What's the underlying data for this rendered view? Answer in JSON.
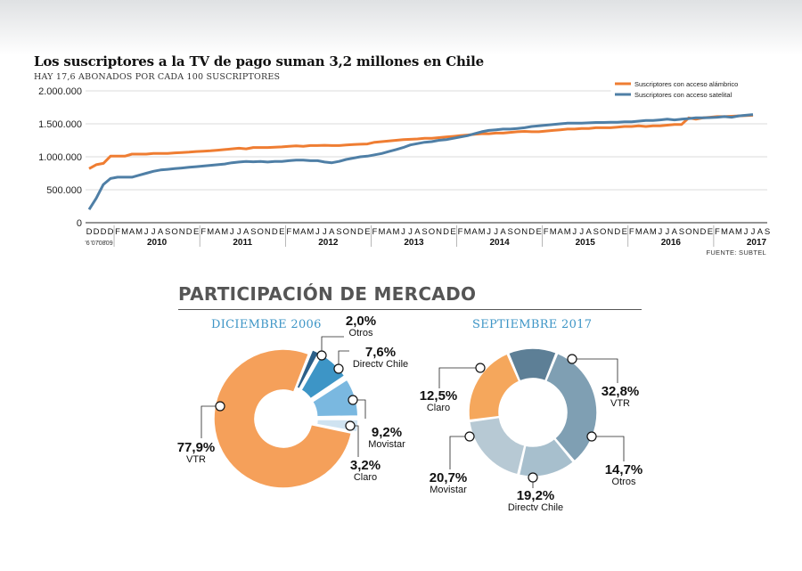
{
  "header": {
    "title": "Los suscriptores a la TV de pago suman 3,2 millones en Chile",
    "subtitle": "HAY 17,6 ABONADOS POR CADA 100 SUSCRIPTORES",
    "source": "FUENTE: SUBTEL"
  },
  "colors": {
    "alambrico": "#ef7d32",
    "satelital": "#4f7fa6",
    "vtr_2006": "#f5a05a",
    "movistar_2006": "#7ab8e0",
    "directv_2006": "#3d95c6",
    "otros_2006": "#2b5f88",
    "claro_2006": "#cfe3f1",
    "vtr_2017": "#7f9fb3",
    "otros_2017": "#a7bfcd",
    "directv_2017": "#b7c9d4",
    "movistar_2017": "#f5a75c",
    "claro_2017": "#5d7f96"
  },
  "chart_data": [
    {
      "type": "line",
      "title": "Los suscriptores a la TV de pago suman 3,2 millones en Chile",
      "ylim": [
        0,
        2000000
      ],
      "yticks": [
        {
          "v": 0,
          "label": "0"
        },
        {
          "v": 500000,
          "label": "500.000"
        },
        {
          "v": 1000000,
          "label": "1.000.000"
        },
        {
          "v": 1500000,
          "label": "1.500.000"
        },
        {
          "v": 2000000,
          "label": "2.000.000"
        }
      ],
      "legend_position": "top-right",
      "x_month_labels": [
        "D",
        "D",
        "D",
        "D",
        "F",
        "M",
        "A",
        "M",
        "J",
        "J",
        "A",
        "S",
        "O",
        "N",
        "D",
        "E",
        "F",
        "M",
        "A",
        "M",
        "J",
        "J",
        "A",
        "S",
        "O",
        "N",
        "D",
        "E",
        "F",
        "M",
        "A",
        "M",
        "J",
        "J",
        "A",
        "S",
        "O",
        "N",
        "D",
        "E",
        "F",
        "M",
        "A",
        "M",
        "J",
        "J",
        "A",
        "S",
        "O",
        "N",
        "D",
        "E",
        "F",
        "M",
        "A",
        "M",
        "J",
        "J",
        "A",
        "S",
        "O",
        "N",
        "D",
        "E",
        "F",
        "M",
        "A",
        "M",
        "J",
        "J",
        "A",
        "S",
        "O",
        "N",
        "D",
        "E",
        "F",
        "M",
        "A",
        "M",
        "J",
        "J",
        "A",
        "S",
        "O",
        "N",
        "D",
        "E",
        "F",
        "M",
        "A",
        "M",
        "J",
        "J",
        "A",
        "S"
      ],
      "x_extra_labels": [
        "'6",
        "'07",
        "'08",
        "'09"
      ],
      "x_year_labels": [
        {
          "i": 4,
          "label": "2010"
        },
        {
          "i": 16,
          "label": "2011"
        },
        {
          "i": 28,
          "label": "2012"
        },
        {
          "i": 40,
          "label": "2013"
        },
        {
          "i": 52,
          "label": "2014"
        },
        {
          "i": 64,
          "label": "2015"
        },
        {
          "i": 76,
          "label": "2016"
        },
        {
          "i": 88,
          "label": "2017"
        }
      ],
      "series": [
        {
          "name": "Suscriptores con acceso alámbrico",
          "color": "#ef7d32",
          "values": [
            820000,
            880000,
            900000,
            1010000,
            1010000,
            1010000,
            1040000,
            1040000,
            1040000,
            1050000,
            1050000,
            1050000,
            1060000,
            1065000,
            1070000,
            1080000,
            1085000,
            1090000,
            1100000,
            1110000,
            1120000,
            1130000,
            1120000,
            1140000,
            1140000,
            1140000,
            1145000,
            1150000,
            1160000,
            1165000,
            1160000,
            1170000,
            1170000,
            1175000,
            1170000,
            1170000,
            1180000,
            1185000,
            1190000,
            1195000,
            1220000,
            1230000,
            1240000,
            1250000,
            1260000,
            1265000,
            1270000,
            1280000,
            1280000,
            1290000,
            1300000,
            1310000,
            1320000,
            1330000,
            1340000,
            1350000,
            1350000,
            1360000,
            1360000,
            1370000,
            1380000,
            1385000,
            1380000,
            1380000,
            1390000,
            1400000,
            1410000,
            1420000,
            1420000,
            1430000,
            1430000,
            1440000,
            1440000,
            1440000,
            1450000,
            1460000,
            1460000,
            1470000,
            1460000,
            1470000,
            1470000,
            1480000,
            1490000,
            1490000,
            1590000,
            1570000,
            1590000,
            1600000,
            1610000,
            1610000,
            1615000,
            1620000,
            1625000,
            1630000
          ]
        },
        {
          "name": "Suscriptores con acceso satelital",
          "color": "#4f7fa6",
          "values": [
            200000,
            370000,
            580000,
            670000,
            690000,
            690000,
            690000,
            720000,
            750000,
            780000,
            800000,
            810000,
            820000,
            830000,
            840000,
            850000,
            860000,
            870000,
            880000,
            890000,
            910000,
            920000,
            930000,
            925000,
            930000,
            920000,
            930000,
            930000,
            940000,
            950000,
            950000,
            940000,
            940000,
            920000,
            910000,
            930000,
            960000,
            980000,
            1000000,
            1010000,
            1030000,
            1050000,
            1080000,
            1110000,
            1140000,
            1180000,
            1200000,
            1220000,
            1230000,
            1250000,
            1260000,
            1280000,
            1300000,
            1320000,
            1350000,
            1380000,
            1400000,
            1410000,
            1420000,
            1420000,
            1430000,
            1440000,
            1460000,
            1470000,
            1480000,
            1490000,
            1500000,
            1510000,
            1510000,
            1510000,
            1515000,
            1520000,
            1520000,
            1525000,
            1525000,
            1530000,
            1530000,
            1540000,
            1550000,
            1550000,
            1560000,
            1570000,
            1560000,
            1570000,
            1580000,
            1590000,
            1590000,
            1595000,
            1600000,
            1610000,
            1600000,
            1620000,
            1630000,
            1640000
          ]
        }
      ]
    },
    {
      "type": "pie",
      "title": "DICIEMBRE 2006",
      "slices": [
        {
          "label": "Otros",
          "value_label": "2,0%",
          "value": 2.0
        },
        {
          "label": "Directv Chile",
          "value_label": "7,6%",
          "value": 7.6
        },
        {
          "label": "Movistar",
          "value_label": "9,2%",
          "value": 9.2
        },
        {
          "label": "Claro",
          "value_label": "3,2%",
          "value": 3.2
        },
        {
          "label": "VTR",
          "value_label": "77,9%",
          "value": 77.9
        }
      ]
    },
    {
      "type": "pie",
      "title": "SEPTIEMBRE 2017",
      "slices": [
        {
          "label": "VTR",
          "value_label": "32,8%",
          "value": 32.8
        },
        {
          "label": "Otros",
          "value_label": "14,7%",
          "value": 14.7
        },
        {
          "label": "Directv Chile",
          "value_label": "19,2%",
          "value": 19.2
        },
        {
          "label": "Movistar",
          "value_label": "20,7%",
          "value": 20.7
        },
        {
          "label": "Claro",
          "value_label": "12,5%",
          "value": 12.5
        }
      ]
    }
  ],
  "market": {
    "section_title": "PARTICIPACIÓN DE MERCADO"
  }
}
